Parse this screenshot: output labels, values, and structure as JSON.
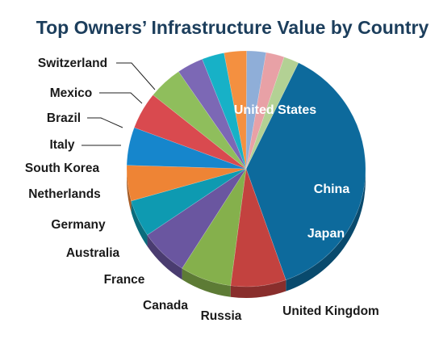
{
  "chart_data": {
    "type": "pie",
    "title": "Top Owners’ Infrastructure Value by Country",
    "slices": [
      {
        "label": "United States",
        "value": 34.5,
        "color": "#0d6a9c",
        "label_position": "inside"
      },
      {
        "label": "China",
        "value": 6.9,
        "color": "#c3423f",
        "label_position": "inside"
      },
      {
        "label": "Japan",
        "value": 6.4,
        "color": "#85b04c",
        "label_position": "inside"
      },
      {
        "label": "United Kingdom",
        "value": 6.0,
        "color": "#6a56a0",
        "label_position": "outside"
      },
      {
        "label": "Russia",
        "value": 4.7,
        "color": "#0e9ab1",
        "label_position": "outside"
      },
      {
        "label": "Canada",
        "value": 4.5,
        "color": "#ee8435",
        "label_position": "outside"
      },
      {
        "label": "France",
        "value": 4.8,
        "color": "#1686cc",
        "label_position": "outside"
      },
      {
        "label": "Australia",
        "value": 4.7,
        "color": "#d94a4f",
        "label_position": "outside"
      },
      {
        "label": "Germany",
        "value": 4.3,
        "color": "#8fbe5c",
        "label_position": "outside"
      },
      {
        "label": "Netherlands",
        "value": 3.3,
        "color": "#7c68b5",
        "label_position": "outside"
      },
      {
        "label": "South Korea",
        "value": 2.8,
        "color": "#17b1c7",
        "label_position": "outside"
      },
      {
        "label": "Italy",
        "value": 2.8,
        "color": "#f49040",
        "label_position": "outside"
      },
      {
        "label": "Brazil",
        "value": 2.4,
        "color": "#8faed8",
        "label_position": "outside"
      },
      {
        "label": "Mexico",
        "value": 2.3,
        "color": "#e8a1a6",
        "label_position": "outside"
      },
      {
        "label": "Switzerland",
        "value": 1.9,
        "color": "#b3d194",
        "label_position": "outside"
      }
    ],
    "legend": "none",
    "style": "3d-pie"
  }
}
